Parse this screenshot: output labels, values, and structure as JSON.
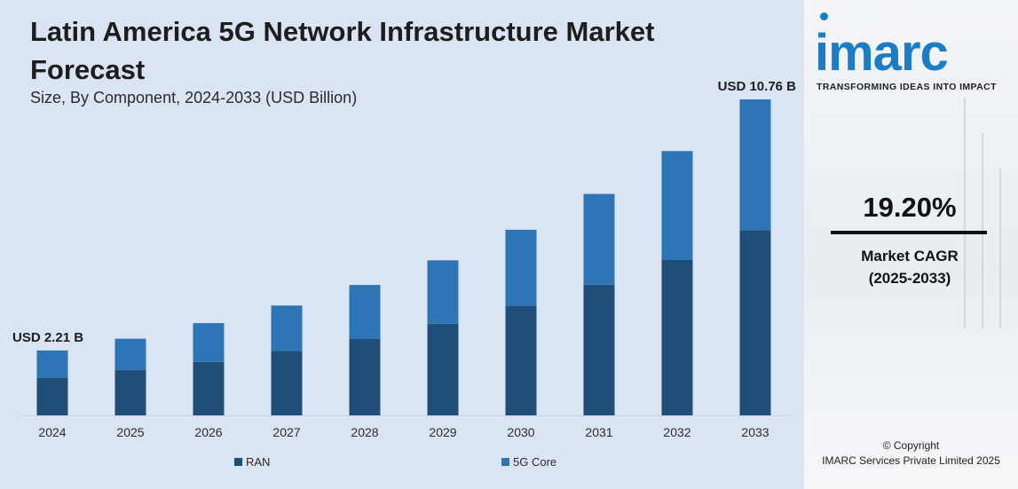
{
  "title": "Latin America 5G Network Infrastructure Market Forecast",
  "subtitle": "Size, By Component, 2024-2033 (USD Billion)",
  "colors": {
    "ran": "#1f4e79",
    "core": "#2e75b6",
    "panel": "#dbe4f3",
    "brand": "#1c7cc4"
  },
  "brand": {
    "logo": "imarc",
    "tagline": "TRANSFORMING IDEAS INTO IMPACT",
    "copyright_line1": "© Copyright",
    "copyright_line2": "IMARC Services Private Limited 2025"
  },
  "cagr": {
    "value": "19.20%",
    "label_line1": "Market CAGR",
    "label_line2": "(2025-2033)"
  },
  "chart_data": {
    "type": "bar",
    "stacked": true,
    "categories": [
      "2024",
      "2025",
      "2026",
      "2027",
      "2028",
      "2029",
      "2030",
      "2031",
      "2032",
      "2033"
    ],
    "series": [
      {
        "name": "RAN",
        "values": [
          1.28,
          1.55,
          1.82,
          2.19,
          2.6,
          3.12,
          3.73,
          4.45,
          5.3,
          6.31
        ]
      },
      {
        "name": "5G Core",
        "values": [
          0.93,
          1.06,
          1.32,
          1.55,
          1.84,
          2.16,
          2.59,
          3.09,
          3.7,
          4.45
        ]
      }
    ],
    "annotations": [
      {
        "category": "2024",
        "text": "USD 2.21 B"
      },
      {
        "category": "2033",
        "text": "USD 10.76 B"
      }
    ],
    "ylim": [
      0,
      10.76
    ],
    "grid": false,
    "legend_position": "bottom"
  }
}
